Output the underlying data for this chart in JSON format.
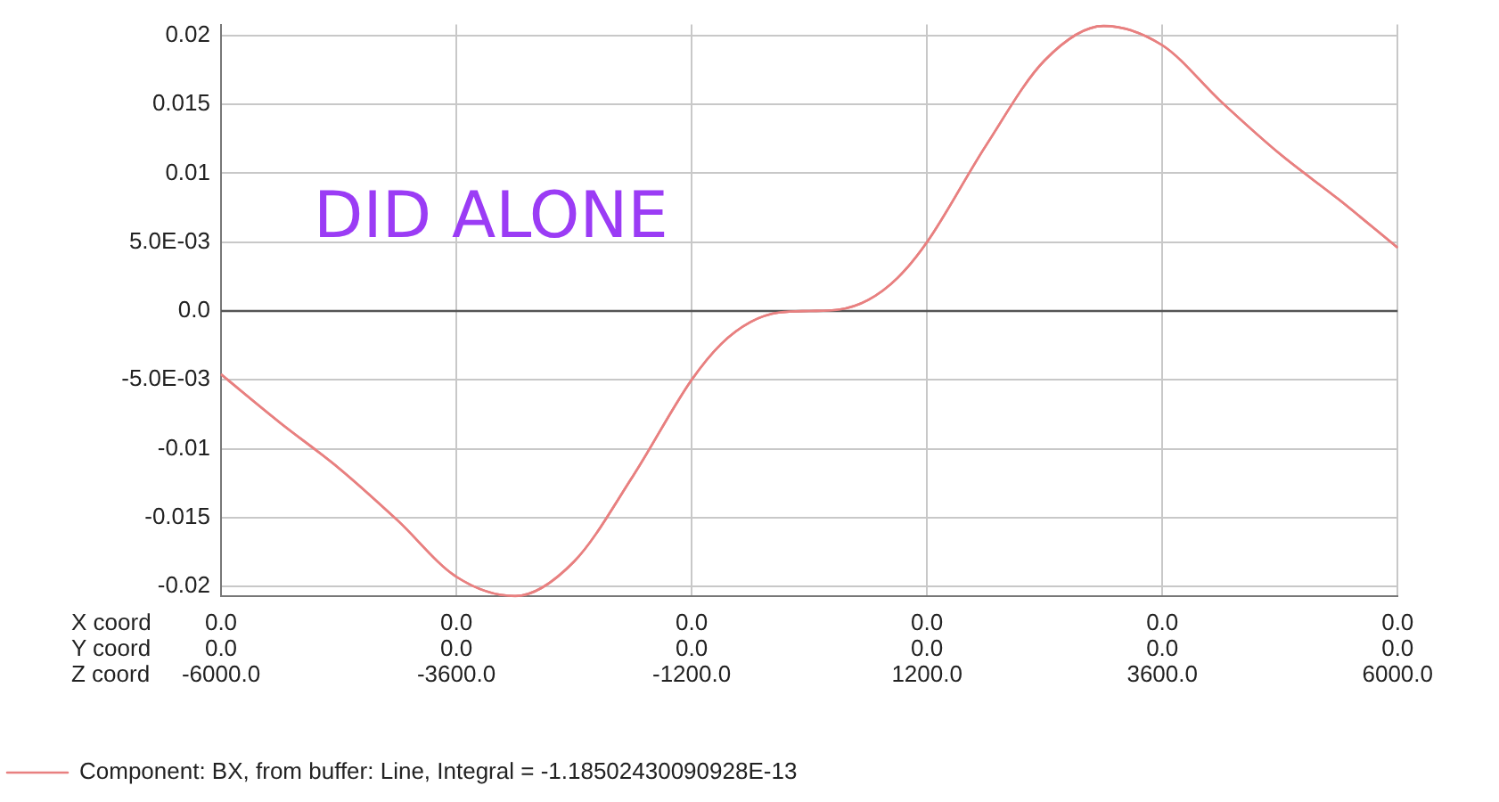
{
  "chart_data": {
    "type": "line",
    "x": [
      -6000,
      -5400,
      -4800,
      -4200,
      -3600,
      -3000,
      -2400,
      -1800,
      -1200,
      -900,
      -600,
      -300,
      0,
      300,
      600,
      900,
      1200,
      1800,
      2400,
      3000,
      3600,
      4200,
      4800,
      5400,
      6000
    ],
    "series": [
      {
        "name": "Component: BX, from buffer: Line, Integral = -1.18502430090928E-13",
        "color": "#e88080",
        "values": [
          -0.0046,
          -0.0081,
          -0.0114,
          -0.0152,
          -0.0193,
          -0.0207,
          -0.0182,
          -0.012,
          -0.005,
          -0.0024,
          -0.0008,
          -0.0001,
          0,
          0.0001,
          0.0008,
          0.0024,
          0.005,
          0.012,
          0.0182,
          0.0207,
          0.0193,
          0.0152,
          0.0114,
          0.0081,
          0.0046
        ]
      }
    ],
    "xlim": [
      -6000,
      6000
    ],
    "xticks": [
      {
        "value": -6000,
        "label": "-6000.0"
      },
      {
        "value": -3600,
        "label": "-3600.0"
      },
      {
        "value": -1200,
        "label": "-1200.0"
      },
      {
        "value": 1200,
        "label": "1200.0"
      },
      {
        "value": 3600,
        "label": "3600.0"
      },
      {
        "value": 6000,
        "label": "6000.0"
      }
    ],
    "ylim": [
      -0.0207,
      0.0208
    ],
    "yticks": [
      {
        "value": -0.02,
        "label": "-0.02"
      },
      {
        "value": -0.015,
        "label": "-0.015"
      },
      {
        "value": -0.01,
        "label": "-0.01"
      },
      {
        "value": -0.005,
        "label": "-5.0E-03"
      },
      {
        "value": 0,
        "label": "0.0"
      },
      {
        "value": 0.005,
        "label": "5.0E-03"
      },
      {
        "value": 0.01,
        "label": "0.01"
      },
      {
        "value": 0.015,
        "label": "0.015"
      },
      {
        "value": 0.02,
        "label": "0.02"
      }
    ],
    "ref_lines": [
      {
        "axis": "y",
        "value": 0,
        "color": "#555555"
      }
    ],
    "annotations": [
      "DID ALONE",
      "X coord\nY coord\nZ coord",
      "0.0\n0.0",
      "0.0\n0.0",
      "0.0\n0.0",
      "0.0\n0.0",
      "0.0\n0.0",
      "0.0\n0.0"
    ],
    "grid": true,
    "legend": "bottom left",
    "marker": "none",
    "line_style": "solid"
  }
}
